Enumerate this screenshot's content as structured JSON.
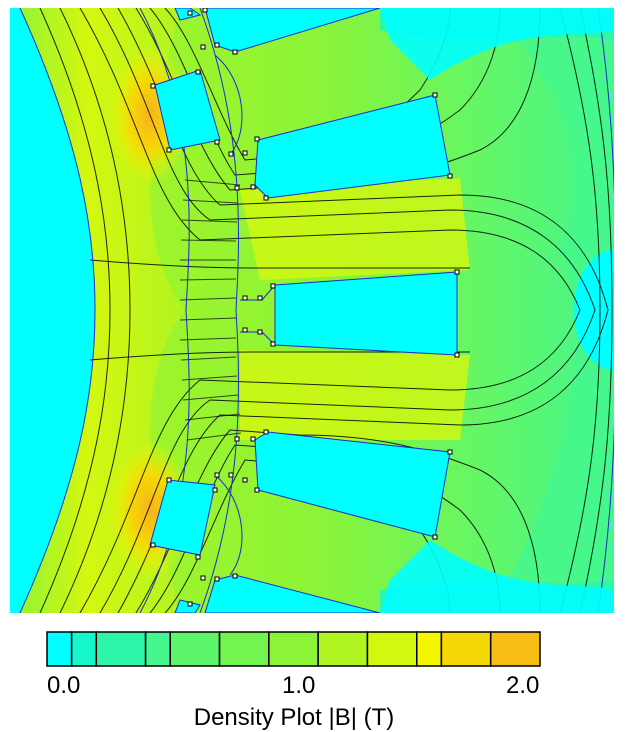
{
  "title": "Density Plot |B| (T)",
  "scale": {
    "min_label": "0.0",
    "mid_label": "1.0",
    "max_label": "2.0",
    "min": 0.0,
    "max": 2.0,
    "bins": [
      {
        "from": 0.0,
        "to": 0.1,
        "color": "#00ffff"
      },
      {
        "from": 0.1,
        "to": 0.2,
        "color": "#17f7cc"
      },
      {
        "from": 0.2,
        "to": 0.4,
        "color": "#2ef6a8"
      },
      {
        "from": 0.4,
        "to": 0.5,
        "color": "#45f78c"
      },
      {
        "from": 0.5,
        "to": 0.7,
        "color": "#5cf56c"
      },
      {
        "from": 0.7,
        "to": 0.9,
        "color": "#73f450"
      },
      {
        "from": 0.9,
        "to": 1.1,
        "color": "#8cf436"
      },
      {
        "from": 1.1,
        "to": 1.3,
        "color": "#b0f422"
      },
      {
        "from": 1.3,
        "to": 1.5,
        "color": "#d4f70f"
      },
      {
        "from": 1.5,
        "to": 1.6,
        "color": "#f4f700"
      },
      {
        "from": 1.6,
        "to": 1.8,
        "color": "#f6d806"
      },
      {
        "from": 1.8,
        "to": 2.0,
        "color": "#f8bd12"
      }
    ]
  },
  "colors": {
    "air": "#00ffff",
    "low": "#2ef6a8",
    "mid": "#8cf436",
    "high": "#f4f700",
    "peak": "#f6b21c",
    "flux_line": "#000000",
    "boundary": "#1a2cc8"
  }
}
